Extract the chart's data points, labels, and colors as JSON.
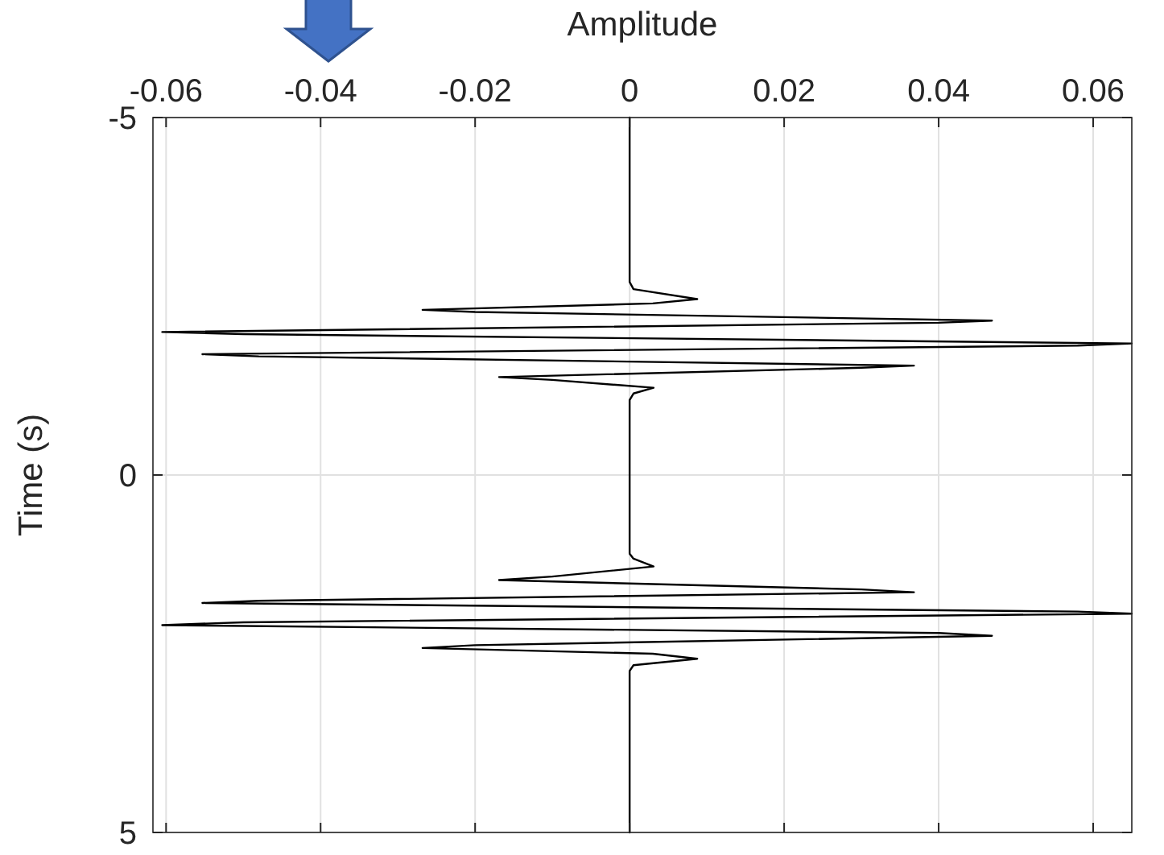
{
  "chart_data": {
    "type": "line",
    "xlabel": "Amplitude",
    "ylabel": "Time (s)",
    "xlim": [
      -0.0617,
      0.065
    ],
    "xticks": [
      -0.06,
      -0.04,
      -0.02,
      0,
      0.02,
      0.04,
      0.06
    ],
    "ylim": [
      5,
      -5
    ],
    "yticks": [
      -5,
      0,
      5
    ],
    "grid": true,
    "marker": "none",
    "line_style": "solid",
    "series": [
      {
        "color": "#000000",
        "x": [
          0,
          0,
          0.0005,
          0.00875,
          0.003,
          -0.0268,
          -0.02,
          0.0469,
          0.04,
          -0.0605,
          -0.05,
          0.065,
          0.058,
          -0.0553,
          -0.048,
          0.0368,
          0.03,
          -0.0169,
          -0.01,
          0.0031,
          0.0005,
          0,
          0,
          0.0005,
          0.0031,
          -0.01,
          -0.0169,
          0.03,
          0.0368,
          -0.048,
          -0.0553,
          0.058,
          0.065,
          -0.05,
          -0.0605,
          0.04,
          0.0469,
          -0.02,
          -0.0268,
          0.003,
          0.00875,
          0.0005,
          0,
          0
        ],
        "values": [
          -5,
          -2.7,
          -2.6,
          -2.46,
          -2.4,
          -2.31,
          -2.28,
          -2.16,
          -2.13,
          -2.0,
          -1.97,
          -1.84,
          -1.81,
          -1.69,
          -1.66,
          -1.53,
          -1.5,
          -1.37,
          -1.33,
          -1.22,
          -1.14,
          -1.05,
          1.1,
          1.17,
          1.28,
          1.42,
          1.47,
          1.6,
          1.64,
          1.76,
          1.79,
          1.91,
          1.94,
          2.06,
          2.1,
          2.21,
          2.25,
          2.38,
          2.42,
          2.5,
          2.57,
          2.66,
          2.74,
          5
        ]
      }
    ]
  }
}
